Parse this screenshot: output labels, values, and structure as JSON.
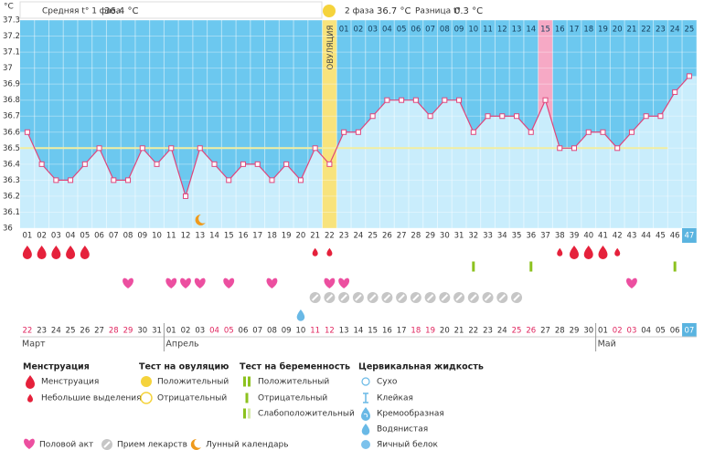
{
  "header": {
    "unit": "°C",
    "phase1_label": "Средняя t° 1 фаза",
    "phase1_value": "36.4 °C",
    "phase2_label": "2 фаза",
    "phase2_value": "36.7 °C",
    "diff_label": "Разница t°",
    "diff_value": "0.3 °C"
  },
  "chart_data": {
    "type": "line",
    "color": "#e0457b",
    "categories": [
      "01",
      "02",
      "03",
      "04",
      "05",
      "06",
      "07",
      "08",
      "09",
      "10",
      "11",
      "12",
      "13",
      "14",
      "15",
      "16",
      "17",
      "18",
      "19",
      "20",
      "21",
      "22",
      "23",
      "24",
      "25",
      "26",
      "27",
      "28",
      "29",
      "30",
      "31",
      "32",
      "33",
      "34",
      "35",
      "36",
      "37",
      "38",
      "39",
      "40",
      "41",
      "42",
      "43",
      "44",
      "45",
      "46",
      "47"
    ],
    "values": [
      36.6,
      36.4,
      36.3,
      36.3,
      36.4,
      36.5,
      36.3,
      36.3,
      36.5,
      36.4,
      36.5,
      36.2,
      36.5,
      36.4,
      36.3,
      36.4,
      36.4,
      36.3,
      36.4,
      36.3,
      36.5,
      36.4,
      36.6,
      36.6,
      36.7,
      36.8,
      36.8,
      36.8,
      36.7,
      36.8,
      36.8,
      36.6,
      36.7,
      36.7,
      36.7,
      36.6,
      36.8,
      36.5,
      36.5,
      36.6,
      36.6,
      36.5,
      36.6,
      36.7,
      36.7,
      36.85,
      36.95
    ],
    "ylim": [
      36,
      37.3
    ],
    "yticks": [
      36,
      36.1,
      36.2,
      36.3,
      36.4,
      36.5,
      36.6,
      36.7,
      36.8,
      36.9,
      37,
      37.1,
      37.2,
      37.3
    ],
    "grid": true,
    "coverline": 36.5,
    "ovulation_day": 22,
    "ovulation_label": "ОВУЛЯЦИЯ",
    "highlight_day": 37,
    "current_day": 47,
    "phase2_days": [
      "01",
      "02",
      "03",
      "04",
      "05",
      "06",
      "07",
      "08",
      "09",
      "10",
      "11",
      "12",
      "13",
      "14",
      "15",
      "16",
      "17",
      "18",
      "19",
      "20",
      "21",
      "22",
      "23",
      "24",
      "25"
    ]
  },
  "cycle_marks": {
    "menstruation": [
      1,
      2,
      3,
      4,
      5,
      39,
      40,
      41
    ],
    "spotting": [
      21,
      22,
      38,
      42
    ],
    "pregnancy_negative": [
      32,
      36,
      46
    ],
    "intercourse": [
      8,
      11,
      12,
      13,
      15,
      18,
      22,
      23,
      43
    ],
    "medication": [
      21,
      22,
      23,
      24,
      25,
      26,
      27,
      28,
      29,
      30,
      31,
      32,
      33,
      34,
      35
    ],
    "cervical_watery": [
      20
    ],
    "lunar": [
      13
    ]
  },
  "calendar": {
    "dates": [
      "22",
      "23",
      "24",
      "25",
      "26",
      "27",
      "28",
      "29",
      "30",
      "31",
      "01",
      "02",
      "03",
      "04",
      "05",
      "06",
      "07",
      "08",
      "09",
      "10",
      "11",
      "12",
      "13",
      "14",
      "15",
      "16",
      "17",
      "18",
      "19",
      "20",
      "21",
      "22",
      "23",
      "24",
      "25",
      "26",
      "27",
      "28",
      "29",
      "30",
      "01",
      "02",
      "03",
      "04",
      "05",
      "06",
      "07"
    ],
    "weekends": [
      0,
      6,
      7,
      13,
      14,
      20,
      21,
      27,
      28,
      34,
      35,
      41,
      42
    ],
    "months": [
      {
        "label": "Март",
        "start": 0
      },
      {
        "label": "Апрель",
        "start": 10
      },
      {
        "label": "Май",
        "start": 40
      }
    ]
  },
  "legend": [
    {
      "title": "Менструация",
      "items": [
        "Менструация",
        "Небольшие выделения"
      ]
    },
    {
      "title": "Тест на овуляцию",
      "items": [
        "Положительный",
        "Отрицательный"
      ]
    },
    {
      "title": "Тест на беременность",
      "items": [
        "Положительный",
        "Отрицательный",
        "Слабоположительный"
      ]
    },
    {
      "title": "Цервикальная жидкость",
      "items": [
        "Сухо",
        "Клейкая",
        "Кремообразная",
        "Водянистая",
        "Яичный белок"
      ]
    }
  ],
  "bottom_legend": [
    "Половой акт",
    "Прием лекарств",
    "Лунный календарь"
  ]
}
